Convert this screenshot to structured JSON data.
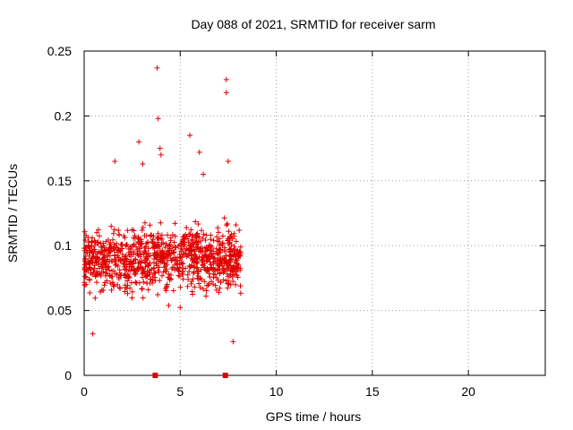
{
  "chart_data": {
    "type": "scatter",
    "title": "Day 088 of 2021, SRMTID for receiver sarm",
    "xlabel": "GPS time / hours",
    "ylabel": "SRMTID / TECUs",
    "xlim": [
      0,
      24
    ],
    "ylim": [
      0,
      0.25
    ],
    "x_ticks": [
      0,
      5,
      10,
      15,
      20
    ],
    "y_ticks": [
      0,
      0.05,
      0.1,
      0.15,
      0.2,
      0.25
    ],
    "x_tick_labels": [
      "0",
      "5",
      "10",
      "15",
      "20"
    ],
    "y_tick_labels": [
      "0",
      "0.05",
      "0.1",
      "0.15",
      "0.2",
      "0.25"
    ],
    "grid": true,
    "marker": "+",
    "marker_color": "#e00000",
    "series": [
      {
        "name": "SRMTID",
        "x_range": [
          0.0,
          8.15
        ],
        "y_range": [
          0.025,
          0.237
        ],
        "cluster_center": 0.09,
        "n_points": 1000,
        "notable_points": [
          {
            "x": 3.8,
            "y": 0.237
          },
          {
            "x": 7.4,
            "y": 0.228
          },
          {
            "x": 7.4,
            "y": 0.218
          },
          {
            "x": 3.85,
            "y": 0.198
          },
          {
            "x": 5.5,
            "y": 0.185
          },
          {
            "x": 2.85,
            "y": 0.18
          },
          {
            "x": 3.95,
            "y": 0.175
          },
          {
            "x": 4.0,
            "y": 0.17
          },
          {
            "x": 6.0,
            "y": 0.172
          },
          {
            "x": 7.5,
            "y": 0.165
          },
          {
            "x": 1.6,
            "y": 0.165
          },
          {
            "x": 3.05,
            "y": 0.163
          },
          {
            "x": 6.2,
            "y": 0.155
          },
          {
            "x": 0.1,
            "y": 0.07
          },
          {
            "x": 0.45,
            "y": 0.032
          },
          {
            "x": 7.75,
            "y": 0.026
          }
        ]
      }
    ],
    "gap_markers": [
      {
        "x": 3.7,
        "y": 0
      },
      {
        "x": 7.35,
        "y": 0
      }
    ]
  }
}
